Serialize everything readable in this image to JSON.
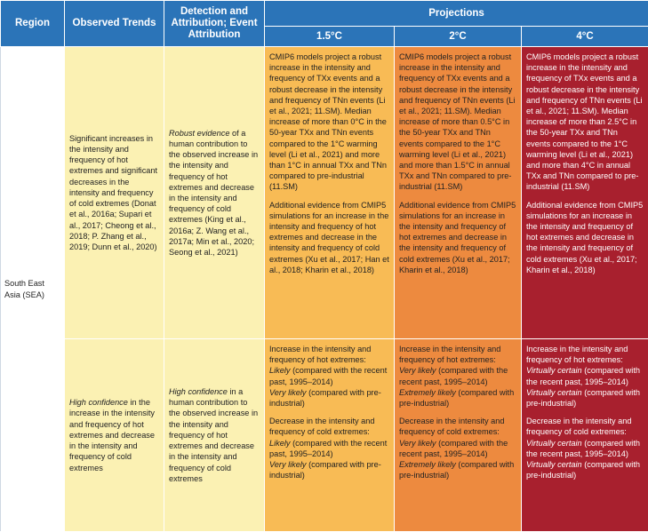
{
  "headers": {
    "region": "Region",
    "observed": "Observed Trends",
    "detection": "Detection and Attribution; Event Attribution",
    "projections": "Projections",
    "p15": "1.5°C",
    "p2": "2°C",
    "p4": "4°C"
  },
  "region": "South East Asia (SEA)",
  "row1": {
    "observed": "Significant increases in the intensity and frequency of hot extremes and significant decreases in the intensity and frequency of cold extremes (Donat et al., 2016a; Supari et al., 2017; Cheong et al., 2018; P. Zhang et al., 2019; Dunn et al., 2020)",
    "detection_em": "Robust evidence",
    "detection_rest": "of a human contribution to the observed increase in the intensity and frequency of hot extremes and decrease in the intensity and frequency of cold extremes (King et al., 2016a; Z. Wang et al., 2017a; Min et al., 2020; Seong et al., 2021)",
    "p15": "CMIP6 models project a robust increase in the intensity and frequency of TXx events and a robust decrease in the intensity and frequency of TNn events (Li et al., 2021; 11.SM). Median increase of more than 0°C in the 50-year TXx and TNn events compared to the 1°C warming level (Li et al., 2021) and more than 1°C in annual TXx and TNn compared to pre-industrial (11.SM)",
    "p15_b": "Additional evidence from CMIP5 simulations for an increase in the intensity and frequency of hot extremes and decrease in the intensity and frequency of cold extremes (Xu et al., 2017; Han et al., 2018; Kharin et al., 2018)",
    "p2": "CMIP6 models project a robust increase in the intensity and frequency of TXx events and a robust decrease in the intensity and frequency of TNn events (Li et al., 2021; 11.SM). Median increase of more than 0.5°C in the 50-year TXx and TNn events compared to the 1°C warming level (Li et al., 2021) and more than 1.5°C in annual TXx and TNn compared to pre-industrial (11.SM)",
    "p2_b": "Additional evidence from CMIP5 simulations for an increase in the intensity and frequency of hot extremes and decrease in the intensity and frequency of cold extremes (Xu et al., 2017; Kharin et al., 2018)",
    "p4": "CMIP6 models project a robust increase in the intensity and frequency of TXx events and a robust decrease in the intensity and frequency of TNn events (Li et al., 2021; 11.SM). Median increase of more than 2.5°C in the 50-year TXx and TNn events compared to the 1°C warming level (Li et al., 2021) and more than 4°C in annual TXx and TNn compared to pre-industrial (11.SM)",
    "p4_b": "Additional evidence from CMIP5 simulations for an increase in the intensity and frequency of hot extremes and decrease in the intensity and frequency of cold extremes (Xu et al., 2017; Kharin et al., 2018)"
  },
  "row2": {
    "observed_em": "High confidence",
    "observed_rest": "in the increase in the intensity and frequency of hot extremes and decrease in the intensity and frequency of cold extremes",
    "detection_em": "High confidence",
    "detection_rest": "in a human contribution to the observed increase in the intensity and frequency of hot extremes and decrease in the intensity and frequency of cold extremes",
    "hot_intro": "Increase in the intensity and frequency of hot extremes:",
    "cold_intro": "Decrease in the intensity and frequency of cold extremes:",
    "recent": "(compared with the recent past, 1995–2014)",
    "preind": "(compared with pre-industrial)",
    "p15_a": "Likely",
    "p15_b": "Very likely",
    "p2_a": "Very likely",
    "p2_b": "Extremely likely",
    "p4_a": "Virtually certain",
    "p4_b": "Virtually certain"
  }
}
